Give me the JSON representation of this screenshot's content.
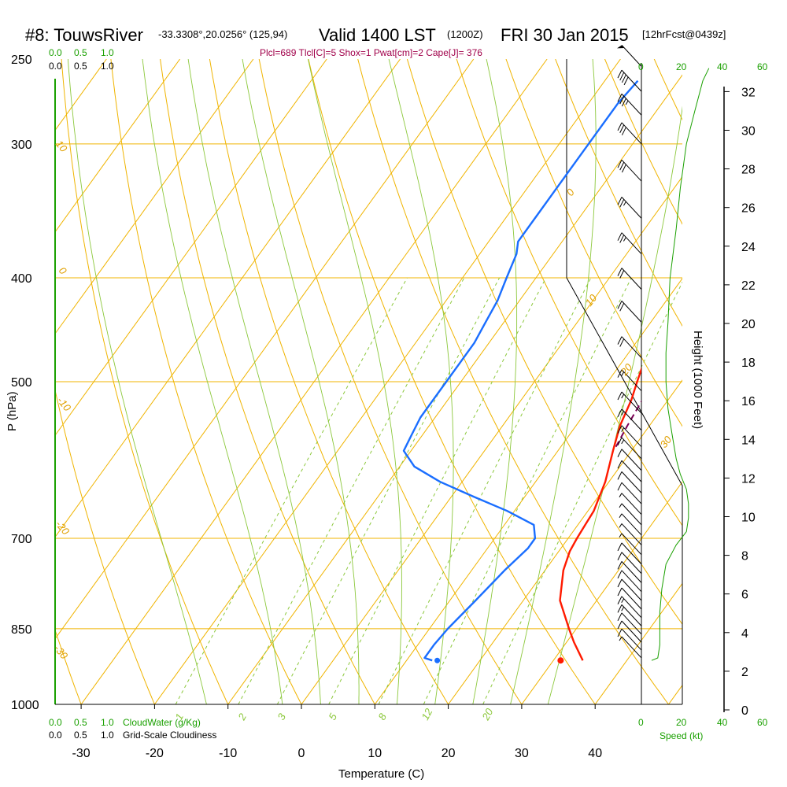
{
  "header": {
    "station": "#8: TouwsRiver",
    "coords": "-33.3308°,20.0256° (125,94)",
    "valid": "Valid 1400 LST",
    "zulu": "(1200Z)",
    "date": "FRI 30 Jan 2015",
    "forecast": "[12hrFcst@0439z]",
    "params": "Plcl=689 Tlcl[C]=5 Shox=1 Pwat[cm]=2 Cape[J]= 376"
  },
  "colors": {
    "temperature": "#ff1a00",
    "dewpoint": "#1a6eff",
    "parcel": "#7a0055",
    "isobar": "#f0b400",
    "dry_adiabat": "#f0b400",
    "moist_adiabat": "#8cc83c",
    "mixing_ratio": "#8cc83c",
    "cloud": "#1aa000",
    "barb": "#000000"
  },
  "axes": {
    "x_title": "Temperature (C)",
    "y_title": "P (hPa)",
    "height_title": "Height (1000 Feet)",
    "speed_title": "Speed (kt)",
    "cloudwater_title": "CloudWater (g/Kg)",
    "cloudiness_title": "Grid-Scale Cloudiness",
    "cloud_scale": [
      "0.0",
      "0.5",
      "1.0"
    ],
    "speed_ticks": [
      "0",
      "20",
      "40",
      "60"
    ],
    "mix_label_1": "1",
    "mix_label_2": "2",
    "mix_label_3": "3",
    "mix_label_5": "5",
    "mix_label_8": "8",
    "mix_label_12": "12",
    "mix_label_20": "20",
    "dry_label_10": "10",
    "dry_label_0": "0",
    "dry_label_m10": "-10",
    "dry_label_m20": "-20",
    "dry_label_m30": "-30",
    "moist_label_0": "0",
    "moist_label_10": "10",
    "moist_label_20": "20",
    "moist_label_30": "30"
  },
  "chart_data": {
    "type": "line",
    "x_axis": {
      "range": [
        -33,
        52
      ],
      "ticks": [
        -30,
        -20,
        -10,
        0,
        10,
        20,
        30,
        40
      ]
    },
    "y_axis": {
      "scale": "log",
      "range": [
        1000,
        250
      ],
      "ticks": [
        250,
        300,
        400,
        500,
        700,
        850,
        1000
      ]
    },
    "height_axis": {
      "ticks": [
        0,
        2,
        4,
        6,
        8,
        10,
        12,
        14,
        16,
        18,
        20,
        22,
        24,
        26,
        28,
        30,
        32
      ]
    },
    "series": [
      {
        "kind": "temperature",
        "points": [
          [
            910,
            34
          ],
          [
            875,
            31
          ],
          [
            850,
            29
          ],
          [
            800,
            25
          ],
          [
            750,
            22.5
          ],
          [
            720,
            21.5
          ],
          [
            700,
            21.2
          ],
          [
            680,
            21
          ],
          [
            660,
            20.8
          ],
          [
            620,
            19.5
          ],
          [
            580,
            17.5
          ],
          [
            550,
            16
          ],
          [
            520,
            15
          ],
          [
            500,
            14
          ],
          [
            470,
            12.5
          ],
          [
            440,
            11
          ],
          [
            420,
            10
          ],
          [
            400,
            9
          ],
          [
            380,
            8
          ],
          [
            360,
            7
          ],
          [
            340,
            6
          ],
          [
            320,
            5
          ],
          [
            300,
            4.5
          ],
          [
            280,
            3.8
          ],
          [
            262,
            3.3
          ]
        ]
      },
      {
        "kind": "dewpoint",
        "points": [
          [
            910,
            13.5
          ],
          [
            905,
            12.2
          ],
          [
            880,
            12.2
          ],
          [
            850,
            12.5
          ],
          [
            800,
            13.5
          ],
          [
            750,
            14.5
          ],
          [
            715,
            15.5
          ],
          [
            700,
            15.5
          ],
          [
            680,
            14
          ],
          [
            660,
            9
          ],
          [
            640,
            3
          ],
          [
            620,
            -3
          ],
          [
            600,
            -8
          ],
          [
            580,
            -11
          ],
          [
            560,
            -11.5
          ],
          [
            540,
            -12
          ],
          [
            520,
            -12
          ],
          [
            500,
            -12
          ],
          [
            480,
            -12
          ],
          [
            460,
            -12
          ],
          [
            440,
            -12.5
          ],
          [
            420,
            -13
          ],
          [
            400,
            -14
          ],
          [
            380,
            -15
          ],
          [
            370,
            -16
          ],
          [
            350,
            -16
          ],
          [
            330,
            -16
          ],
          [
            310,
            -16
          ],
          [
            290,
            -16
          ],
          [
            275,
            -16
          ],
          [
            262,
            -15.5
          ]
        ]
      },
      {
        "kind": "parcel",
        "points": [
          [
            575,
            17.5
          ],
          [
            550,
            17
          ],
          [
            520,
            16.5
          ],
          [
            500,
            15.5
          ],
          [
            470,
            14
          ],
          [
            440,
            12.5
          ],
          [
            410,
            11
          ],
          [
            380,
            9.5
          ],
          [
            350,
            8
          ],
          [
            330,
            7
          ],
          [
            310,
            6
          ],
          [
            300,
            5.5
          ]
        ]
      }
    ],
    "surface_temperature": {
      "pressure": 910,
      "value": 35.3
    },
    "surface_dewpoint": {
      "pressure": 910,
      "value": 18.5
    },
    "wind_barbs": [
      {
        "p": 905,
        "flags": 0,
        "full": 0,
        "half": 1
      },
      {
        "p": 890,
        "flags": 0,
        "full": 1,
        "half": 0
      },
      {
        "p": 875,
        "flags": 0,
        "full": 1,
        "half": 0
      },
      {
        "p": 860,
        "flags": 0,
        "full": 1,
        "half": 0
      },
      {
        "p": 845,
        "flags": 0,
        "full": 1,
        "half": 1
      },
      {
        "p": 830,
        "flags": 0,
        "full": 1,
        "half": 1
      },
      {
        "p": 815,
        "flags": 0,
        "full": 1,
        "half": 0
      },
      {
        "p": 800,
        "flags": 0,
        "full": 1,
        "half": 0
      },
      {
        "p": 785,
        "flags": 0,
        "full": 1,
        "half": 0
      },
      {
        "p": 770,
        "flags": 0,
        "full": 1,
        "half": 0
      },
      {
        "p": 755,
        "flags": 0,
        "full": 1,
        "half": 0
      },
      {
        "p": 740,
        "flags": 0,
        "full": 1,
        "half": 0
      },
      {
        "p": 725,
        "flags": 0,
        "full": 0,
        "half": 1
      },
      {
        "p": 710,
        "flags": 0,
        "full": 0,
        "half": 1
      },
      {
        "p": 695,
        "flags": 0,
        "full": 0,
        "half": 1
      },
      {
        "p": 680,
        "flags": 0,
        "full": 0,
        "half": 1
      },
      {
        "p": 665,
        "flags": 0,
        "full": 0,
        "half": 1
      },
      {
        "p": 650,
        "flags": 0,
        "full": 1,
        "half": 0
      },
      {
        "p": 635,
        "flags": 0,
        "full": 1,
        "half": 0
      },
      {
        "p": 620,
        "flags": 0,
        "full": 1,
        "half": 0
      },
      {
        "p": 605,
        "flags": 0,
        "full": 1,
        "half": 0
      },
      {
        "p": 590,
        "flags": 0,
        "full": 1,
        "half": 1
      },
      {
        "p": 575,
        "flags": 0,
        "full": 1,
        "half": 1
      },
      {
        "p": 555,
        "flags": 0,
        "full": 1,
        "half": 1
      },
      {
        "p": 535,
        "flags": 0,
        "full": 1,
        "half": 1
      },
      {
        "p": 510,
        "flags": 0,
        "full": 1,
        "half": 1
      },
      {
        "p": 475,
        "flags": 0,
        "full": 2,
        "half": 0
      },
      {
        "p": 440,
        "flags": 0,
        "full": 2,
        "half": 0
      },
      {
        "p": 410,
        "flags": 0,
        "full": 2,
        "half": 0
      },
      {
        "p": 380,
        "flags": 0,
        "full": 2,
        "half": 1
      },
      {
        "p": 352,
        "flags": 0,
        "full": 2,
        "half": 1
      },
      {
        "p": 325,
        "flags": 0,
        "full": 3,
        "half": 0
      },
      {
        "p": 300,
        "flags": 0,
        "full": 3,
        "half": 0
      },
      {
        "p": 282,
        "flags": 0,
        "full": 3,
        "half": 1
      },
      {
        "p": 268,
        "flags": 0,
        "full": 4,
        "half": 0
      },
      {
        "p": 254,
        "flags": 1,
        "full": 0,
        "half": 0
      }
    ],
    "wind_speed_profile": [
      [
        910,
        5
      ],
      [
        905,
        8
      ],
      [
        880,
        9
      ],
      [
        850,
        9
      ],
      [
        820,
        9
      ],
      [
        780,
        10
      ],
      [
        740,
        12
      ],
      [
        710,
        17
      ],
      [
        690,
        22
      ],
      [
        670,
        23
      ],
      [
        650,
        23
      ],
      [
        630,
        22
      ],
      [
        610,
        19
      ],
      [
        590,
        17
      ],
      [
        560,
        15
      ],
      [
        530,
        13
      ],
      [
        500,
        12
      ],
      [
        470,
        12
      ],
      [
        440,
        13
      ],
      [
        400,
        14
      ],
      [
        360,
        17
      ],
      [
        330,
        19
      ],
      [
        300,
        22
      ],
      [
        280,
        26
      ],
      [
        262,
        30
      ],
      [
        255,
        33
      ]
    ]
  }
}
